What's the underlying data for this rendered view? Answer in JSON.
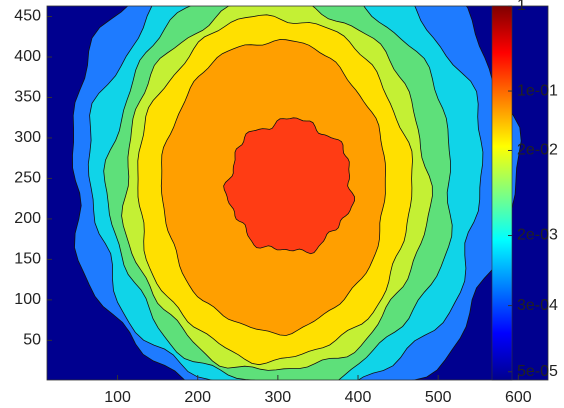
{
  "chart_data": {
    "type": "contour",
    "xlim": [
      12,
      637
    ],
    "xticks": [
      100,
      200,
      300,
      400,
      500,
      600
    ],
    "ylim": [
      1,
      463
    ],
    "yticks": [
      50,
      100,
      150,
      200,
      250,
      300,
      350,
      400,
      450
    ],
    "levels": [
      4e-05,
      0.0003,
      0.001,
      0.003,
      0.006,
      0.01,
      0.02,
      0.1
    ],
    "level_colors": [
      "#00008f",
      "#1e7bff",
      "#10d4e8",
      "#5ee07a",
      "#c4f034",
      "#ffe000",
      "#ff9f00",
      "#ff3c14"
    ],
    "clim": [
      4e-05,
      1
    ],
    "color_scale": "log",
    "cticks": [
      1,
      {
        "value": 0.1,
        "label": "1e-01"
      },
      {
        "value": 0.02,
        "label": "2e-02"
      },
      {
        "value": 0.002,
        "label": "2e-03"
      },
      {
        "value": 0.0003,
        "label": "3e-04"
      },
      {
        "value": 5e-05,
        "label": "5e-05"
      }
    ]
  }
}
